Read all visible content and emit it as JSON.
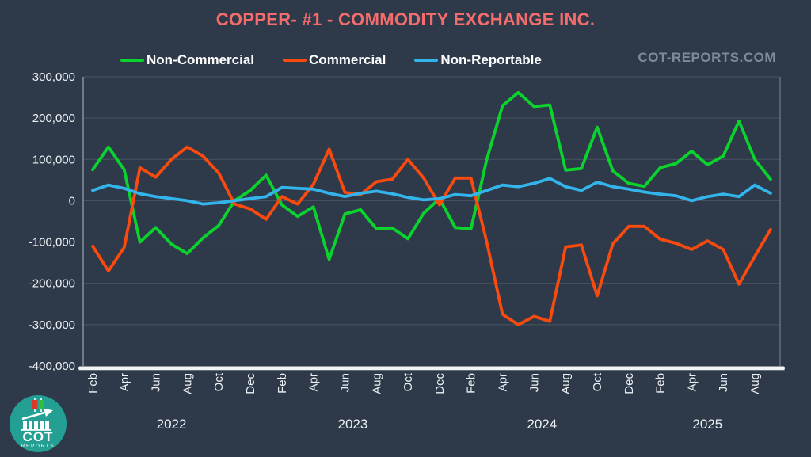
{
  "header": {
    "watermark": "COT-REPORTS.COM"
  },
  "branding": {
    "logo_line1": "COT",
    "logo_line2": "REPORTS"
  },
  "colors": {
    "background": "#2e3a49",
    "title": "#f56c6c",
    "watermark": "#808a96",
    "legend_text": "#ffffff",
    "axis_text": "#edf1f5",
    "gridline": "#4a5463",
    "x_axis_bar": "#f2f3f4",
    "non_commercial": "#0ad32d",
    "commercial": "#fb4a0d",
    "non_reportable": "#33b4ea",
    "logo_teal": "#23a093"
  },
  "chart_data": {
    "type": "line",
    "title": "COPPER- #1 - COMMODITY EXCHANGE INC.",
    "xlabel": "",
    "ylabel": "",
    "legend_position": "top",
    "grid": "horizontal",
    "ylim": [
      -400000,
      300000
    ],
    "y_tick_values": [
      300000,
      200000,
      100000,
      0,
      -100000,
      -200000,
      -300000,
      -400000
    ],
    "y_tick_labels": [
      "300,000",
      "200,000",
      "100,000",
      "0",
      "-100,000",
      "-200,000",
      "-300,000",
      "-400,000"
    ],
    "x_tick_step": 2,
    "x": [
      "Feb 2022",
      "Mar 2022",
      "Apr 2022",
      "May 2022",
      "Jun 2022",
      "Jul 2022",
      "Aug 2022",
      "Sep 2022",
      "Oct 2022",
      "Nov 2022",
      "Dec 2022",
      "Jan 2023",
      "Feb 2023",
      "Mar 2023",
      "Apr 2023",
      "May 2023",
      "Jun 2023",
      "Jul 2023",
      "Aug 2023",
      "Sep 2023",
      "Oct 2023",
      "Nov 2023",
      "Dec 2023",
      "Jan 2024",
      "Feb 2024",
      "Mar 2024",
      "Apr 2024",
      "May 2024",
      "Jun 2024",
      "Jul 2024",
      "Aug 2024",
      "Sep 2024",
      "Oct 2024",
      "Nov 2024",
      "Dec 2024",
      "Jan 2025",
      "Feb 2025",
      "Mar 2025",
      "Apr 2025",
      "May 2025",
      "Jun 2025",
      "Jul 2025",
      "Aug 2025",
      "Sep 2025"
    ],
    "years": [
      {
        "label": "2022",
        "span": [
          0,
          10
        ]
      },
      {
        "label": "2023",
        "span": [
          11,
          22
        ]
      },
      {
        "label": "2024",
        "span": [
          23,
          34
        ]
      },
      {
        "label": "2025",
        "span": [
          35,
          43
        ]
      }
    ],
    "series": [
      {
        "name": "Non-Commercial",
        "color": "#0ad32d",
        "values": [
          75000,
          130000,
          75000,
          -100000,
          -65000,
          -105000,
          -128000,
          -90000,
          -60000,
          0,
          25000,
          62000,
          -10000,
          -38000,
          -15000,
          -142000,
          -32000,
          -22000,
          -68000,
          -66000,
          -92000,
          -30000,
          5000,
          -65000,
          -68000,
          100000,
          230000,
          262000,
          228000,
          232000,
          74000,
          78000,
          178000,
          72000,
          42000,
          35000,
          80000,
          90000,
          120000,
          87000,
          108000,
          193000,
          100000,
          52000
        ]
      },
      {
        "name": "Commercial",
        "color": "#fb4a0d",
        "values": [
          -110000,
          -170000,
          -113000,
          80000,
          57000,
          100000,
          130000,
          108000,
          67000,
          -8000,
          -20000,
          -45000,
          10000,
          -8000,
          40000,
          125000,
          20000,
          15000,
          46000,
          52000,
          100000,
          55000,
          -10000,
          55000,
          55000,
          -100000,
          -275000,
          -300000,
          -280000,
          -292000,
          -112000,
          -107000,
          -230000,
          -104000,
          -62000,
          -62000,
          -93000,
          -103000,
          -118000,
          -97000,
          -118000,
          -202000,
          -135000,
          -70000
        ]
      },
      {
        "name": "Non-Reportable",
        "color": "#33b4ea",
        "values": [
          25000,
          38000,
          30000,
          17000,
          10000,
          5000,
          0,
          -8000,
          -5000,
          0,
          5000,
          10000,
          32000,
          30000,
          28000,
          18000,
          10000,
          18000,
          23000,
          17000,
          8000,
          2000,
          5000,
          15000,
          12000,
          25000,
          38000,
          34000,
          42000,
          54000,
          34000,
          25000,
          45000,
          34000,
          28000,
          21000,
          16000,
          12000,
          0,
          10000,
          16000,
          10000,
          38000,
          18000
        ]
      }
    ]
  }
}
